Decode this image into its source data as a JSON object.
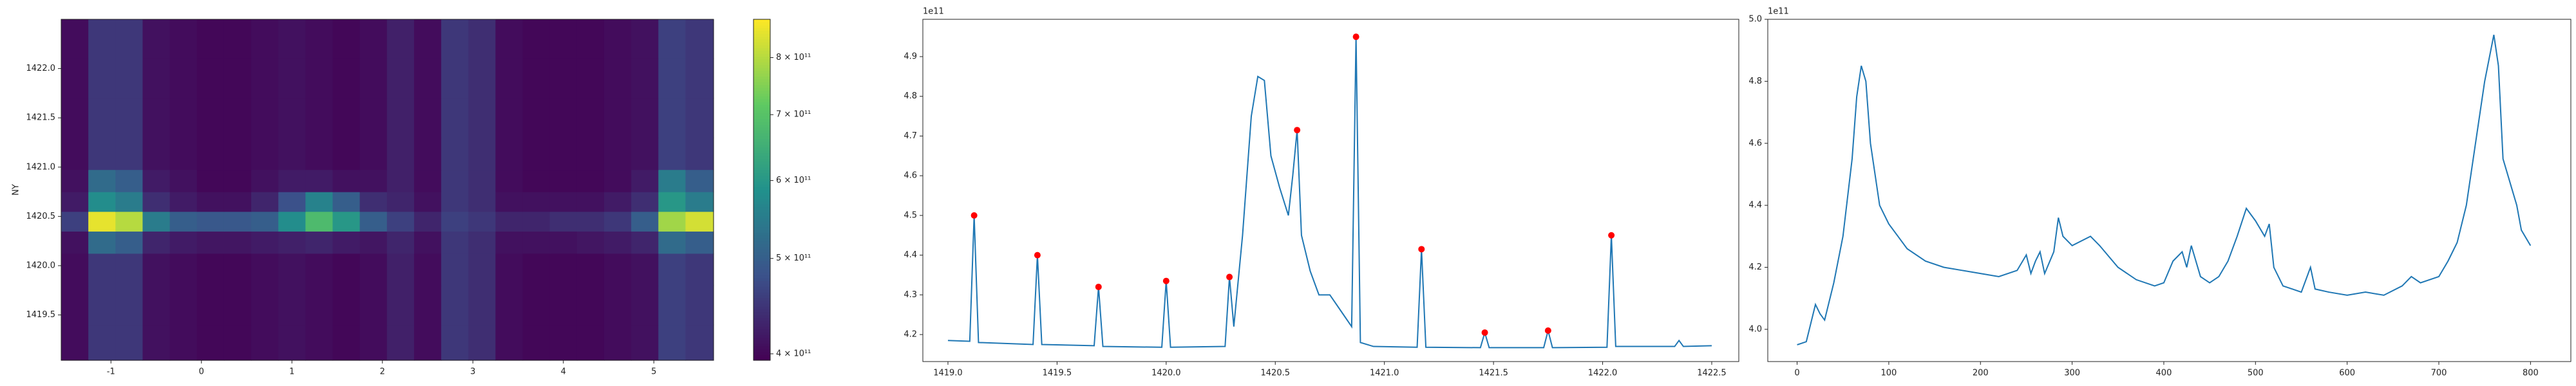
{
  "chart_data": [
    {
      "type": "heatmap",
      "ylabel": "NY",
      "x": [
        -1.4,
        -1.1,
        -0.8,
        -0.5,
        -0.2,
        0.1,
        0.4,
        0.7,
        1.0,
        1.3,
        1.6,
        1.9,
        2.2,
        2.5,
        2.8,
        3.1,
        3.4,
        3.7,
        4.0,
        4.3,
        4.6,
        4.9,
        5.2,
        5.5
      ],
      "y": [
        1419.2,
        1419.6,
        1420.0,
        1420.25,
        1420.45,
        1420.65,
        1420.85,
        1421.1,
        1421.5,
        1421.9,
        1422.3
      ],
      "z": [
        [
          405000000000.0,
          450000000000.0,
          450000000000.0,
          410000000000.0,
          405000000000.0,
          400000000000.0,
          400000000000.0,
          405000000000.0,
          410000000000.0,
          405000000000.0,
          400000000000.0,
          405000000000.0,
          425000000000.0,
          405000000000.0,
          450000000000.0,
          440000000000.0,
          405000000000.0,
          400000000000.0,
          400000000000.0,
          400000000000.0,
          405000000000.0,
          410000000000.0,
          460000000000.0,
          450000000000.0
        ],
        [
          405000000000.0,
          450000000000.0,
          450000000000.0,
          410000000000.0,
          405000000000.0,
          400000000000.0,
          400000000000.0,
          405000000000.0,
          410000000000.0,
          405000000000.0,
          400000000000.0,
          405000000000.0,
          425000000000.0,
          405000000000.0,
          450000000000.0,
          440000000000.0,
          405000000000.0,
          400000000000.0,
          400000000000.0,
          400000000000.0,
          405000000000.0,
          410000000000.0,
          460000000000.0,
          450000000000.0
        ],
        [
          405000000000.0,
          450000000000.0,
          450000000000.0,
          410000000000.0,
          405000000000.0,
          400000000000.0,
          400000000000.0,
          405000000000.0,
          410000000000.0,
          405000000000.0,
          400000000000.0,
          405000000000.0,
          425000000000.0,
          405000000000.0,
          450000000000.0,
          440000000000.0,
          405000000000.0,
          400000000000.0,
          400000000000.0,
          400000000000.0,
          405000000000.0,
          410000000000.0,
          460000000000.0,
          450000000000.0
        ],
        [
          410000000000.0,
          520000000000.0,
          500000000000.0,
          430000000000.0,
          420000000000.0,
          415000000000.0,
          415000000000.0,
          420000000000.0,
          425000000000.0,
          430000000000.0,
          420000000000.0,
          415000000000.0,
          430000000000.0,
          410000000000.0,
          450000000000.0,
          440000000000.0,
          410000000000.0,
          410000000000.0,
          410000000000.0,
          415000000000.0,
          420000000000.0,
          430000000000.0,
          520000000000.0,
          500000000000.0
        ],
        [
          460000000000.0,
          850000000000.0,
          800000000000.0,
          550000000000.0,
          500000000000.0,
          490000000000.0,
          490000000000.0,
          500000000000.0,
          580000000000.0,
          680000000000.0,
          600000000000.0,
          500000000000.0,
          460000000000.0,
          430000000000.0,
          460000000000.0,
          450000000000.0,
          430000000000.0,
          430000000000.0,
          440000000000.0,
          440000000000.0,
          450000000000.0,
          500000000000.0,
          780000000000.0,
          830000000000.0
        ],
        [
          420000000000.0,
          580000000000.0,
          550000000000.0,
          440000000000.0,
          420000000000.0,
          410000000000.0,
          410000000000.0,
          430000000000.0,
          480000000000.0,
          560000000000.0,
          500000000000.0,
          440000000000.0,
          430000000000.0,
          410000000000.0,
          450000000000.0,
          440000000000.0,
          410000000000.0,
          410000000000.0,
          410000000000.0,
          410000000000.0,
          420000000000.0,
          440000000000.0,
          600000000000.0,
          550000000000.0
        ],
        [
          410000000000.0,
          520000000000.0,
          500000000000.0,
          420000000000.0,
          410000000000.0,
          400000000000.0,
          400000000000.0,
          410000000000.0,
          420000000000.0,
          420000000000.0,
          410000000000.0,
          410000000000.0,
          425000000000.0,
          405000000000.0,
          450000000000.0,
          440000000000.0,
          405000000000.0,
          400000000000.0,
          400000000000.0,
          400000000000.0,
          405000000000.0,
          420000000000.0,
          550000000000.0,
          500000000000.0
        ],
        [
          405000000000.0,
          450000000000.0,
          450000000000.0,
          410000000000.0,
          405000000000.0,
          400000000000.0,
          400000000000.0,
          405000000000.0,
          410000000000.0,
          405000000000.0,
          400000000000.0,
          405000000000.0,
          425000000000.0,
          405000000000.0,
          450000000000.0,
          440000000000.0,
          405000000000.0,
          400000000000.0,
          400000000000.0,
          400000000000.0,
          405000000000.0,
          410000000000.0,
          460000000000.0,
          450000000000.0
        ],
        [
          405000000000.0,
          450000000000.0,
          450000000000.0,
          410000000000.0,
          405000000000.0,
          400000000000.0,
          400000000000.0,
          405000000000.0,
          410000000000.0,
          405000000000.0,
          400000000000.0,
          405000000000.0,
          425000000000.0,
          405000000000.0,
          450000000000.0,
          440000000000.0,
          405000000000.0,
          400000000000.0,
          400000000000.0,
          400000000000.0,
          405000000000.0,
          410000000000.0,
          460000000000.0,
          450000000000.0
        ],
        [
          405000000000.0,
          450000000000.0,
          450000000000.0,
          410000000000.0,
          405000000000.0,
          400000000000.0,
          400000000000.0,
          405000000000.0,
          410000000000.0,
          405000000000.0,
          400000000000.0,
          405000000000.0,
          425000000000.0,
          405000000000.0,
          450000000000.0,
          440000000000.0,
          405000000000.0,
          400000000000.0,
          400000000000.0,
          400000000000.0,
          405000000000.0,
          410000000000.0,
          460000000000.0,
          450000000000.0
        ],
        [
          405000000000.0,
          450000000000.0,
          450000000000.0,
          410000000000.0,
          405000000000.0,
          400000000000.0,
          400000000000.0,
          405000000000.0,
          410000000000.0,
          405000000000.0,
          400000000000.0,
          405000000000.0,
          425000000000.0,
          405000000000.0,
          450000000000.0,
          440000000000.0,
          405000000000.0,
          400000000000.0,
          400000000000.0,
          400000000000.0,
          405000000000.0,
          410000000000.0,
          460000000000.0,
          450000000000.0
        ]
      ],
      "xlim": [
        -1.55,
        5.66
      ],
      "xticks": [
        -1,
        0,
        1,
        2,
        3,
        4,
        5
      ],
      "ylim": [
        1419.04,
        1422.5
      ],
      "yticks": [
        1419.5,
        {
          "value": 1420.0,
          "label": "1420.0"
        },
        1420.5,
        {
          "value": 1421.0,
          "label": "1421.0"
        },
        1421.5,
        {
          "value": 1422.0,
          "label": "1422.0"
        }
      ],
      "colormap": "viridis",
      "colorscale": "log",
      "clim": [
        394000000000.0,
        875000000000.0
      ],
      "cticks": [
        {
          "value": 400000000000.0,
          "label": "4 × 10¹¹"
        },
        {
          "value": 500000000000.0,
          "label": "5 × 10¹¹"
        },
        {
          "value": 600000000000.0,
          "label": "6 × 10¹¹"
        },
        {
          "value": 700000000000.0,
          "label": "7 × 10¹¹"
        },
        {
          "value": 800000000000.0,
          "label": "8 × 10¹¹"
        }
      ]
    },
    {
      "type": "line",
      "offset_label": "1e11",
      "color": "#1f77b4",
      "x": [
        1419.0,
        1419.1,
        1419.12,
        1419.14,
        1419.39,
        1419.41,
        1419.43,
        1419.67,
        1419.69,
        1419.71,
        1419.98,
        1420.0,
        1420.02,
        1420.27,
        1420.29,
        1420.31,
        1420.35,
        1420.39,
        1420.42,
        1420.45,
        1420.48,
        1420.52,
        1420.56,
        1420.58,
        1420.6,
        1420.62,
        1420.66,
        1420.7,
        1420.75,
        1420.8,
        1420.85,
        1420.87,
        1420.89,
        1420.95,
        1421.15,
        1421.17,
        1421.19,
        1421.44,
        1421.46,
        1421.48,
        1421.73,
        1421.75,
        1421.77,
        1422.02,
        1422.04,
        1422.06,
        1422.33,
        1422.35,
        1422.37,
        1422.5
      ],
      "values": [
        4.185,
        4.183,
        4.5,
        4.18,
        4.175,
        4.4,
        4.175,
        4.172,
        4.32,
        4.17,
        4.168,
        4.335,
        4.168,
        4.17,
        4.345,
        4.22,
        4.45,
        4.75,
        4.85,
        4.84,
        4.65,
        4.57,
        4.5,
        4.6,
        4.715,
        4.45,
        4.36,
        4.3,
        4.3,
        4.26,
        4.22,
        4.95,
        4.18,
        4.17,
        4.168,
        4.415,
        4.168,
        4.167,
        4.205,
        4.167,
        4.167,
        4.21,
        4.167,
        4.168,
        4.45,
        4.17,
        4.17,
        4.185,
        4.17,
        4.172
      ],
      "peaks": {
        "color": "#ff0000",
        "x": [
          1419.12,
          1419.41,
          1419.69,
          1420.0,
          1420.29,
          1420.6,
          1420.87,
          1421.17,
          1421.46,
          1421.75,
          1422.04
        ],
        "values": [
          4.5,
          4.4,
          4.32,
          4.335,
          4.345,
          4.715,
          4.95,
          4.415,
          4.205,
          4.21,
          4.45
        ]
      },
      "xlim": [
        1418.885,
        1422.624
      ],
      "xticks": [
        {
          "value": 1419.0,
          "label": "1419.0"
        },
        1419.5,
        {
          "value": 1420.0,
          "label": "1420.0"
        },
        1420.5,
        {
          "value": 1421.0,
          "label": "1421.0"
        },
        1421.5,
        {
          "value": 1422.0,
          "label": "1422.0"
        },
        1422.5
      ],
      "ylim": [
        4.132,
        4.994
      ],
      "yticks": [
        4.2,
        4.3,
        4.4,
        4.5,
        4.6,
        4.7,
        4.8,
        4.9
      ]
    },
    {
      "type": "line",
      "offset_label": "1e11",
      "color": "#1f77b4",
      "x": [
        0,
        10,
        20,
        25,
        30,
        40,
        50,
        60,
        65,
        70,
        75,
        80,
        90,
        100,
        110,
        120,
        140,
        160,
        180,
        200,
        220,
        240,
        250,
        255,
        260,
        265,
        270,
        280,
        285,
        290,
        300,
        320,
        330,
        350,
        370,
        390,
        400,
        410,
        420,
        425,
        430,
        440,
        450,
        460,
        470,
        480,
        490,
        500,
        510,
        515,
        520,
        530,
        540,
        550,
        560,
        565,
        580,
        600,
        620,
        640,
        660,
        670,
        680,
        700,
        710,
        720,
        730,
        740,
        750,
        760,
        765,
        770,
        780,
        785,
        790,
        800
      ],
      "values": [
        3.95,
        3.96,
        4.08,
        4.05,
        4.03,
        4.15,
        4.3,
        4.55,
        4.75,
        4.85,
        4.8,
        4.6,
        4.4,
        4.34,
        4.3,
        4.26,
        4.22,
        4.2,
        4.19,
        4.18,
        4.17,
        4.19,
        4.24,
        4.18,
        4.22,
        4.25,
        4.18,
        4.25,
        4.36,
        4.3,
        4.27,
        4.3,
        4.27,
        4.2,
        4.16,
        4.14,
        4.15,
        4.22,
        4.25,
        4.2,
        4.27,
        4.17,
        4.15,
        4.17,
        4.22,
        4.3,
        4.39,
        4.35,
        4.3,
        4.34,
        4.2,
        4.14,
        4.13,
        4.12,
        4.2,
        4.13,
        4.12,
        4.11,
        4.12,
        4.11,
        4.14,
        4.17,
        4.15,
        4.17,
        4.22,
        4.28,
        4.4,
        4.6,
        4.8,
        4.95,
        4.85,
        4.55,
        4.45,
        4.4,
        4.32,
        4.27
      ],
      "xlim": [
        -32,
        844
      ],
      "xticks": [
        0,
        100,
        200,
        300,
        400,
        500,
        600,
        700,
        800
      ],
      "ylim": [
        3.896,
        5.0
      ],
      "yticks": [
        {
          "value": 4,
          "label": "4.0"
        },
        4.2,
        4.4,
        4.6,
        4.8,
        {
          "value": 5,
          "label": "5.0"
        }
      ]
    }
  ]
}
